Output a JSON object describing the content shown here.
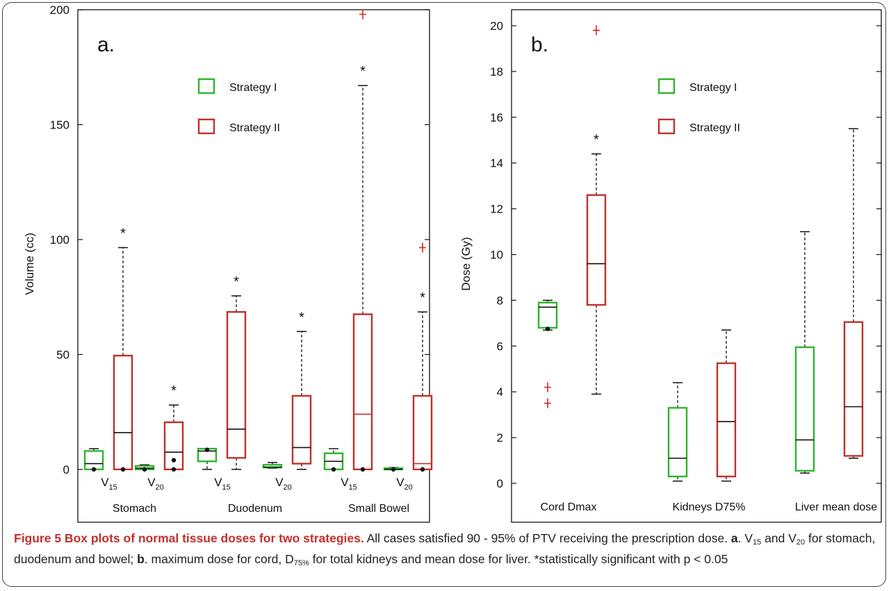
{
  "chart_data": [
    {
      "type": "box",
      "panel_label": "a.",
      "ylabel": "Volume (cc)",
      "ylim": [
        -23,
        200
      ],
      "yticks": [
        0,
        50,
        100,
        150,
        200
      ],
      "legend": [
        {
          "name": "Strategy I",
          "color": "#2bb52b"
        },
        {
          "name": "Strategy II",
          "color": "#c0302a"
        }
      ],
      "groups": [
        {
          "name": "Stomach",
          "subs": [
            {
              "label": "V",
              "sub": "15",
              "boxes": [
                {
                  "series": "Strategy I",
                  "whisker_low": 0,
                  "q1": 0,
                  "median": 2.5,
                  "q3": 8,
                  "whisker_high": 9,
                  "outliers": [
                    0
                  ]
                },
                {
                  "series": "Strategy II",
                  "whisker_low": 0,
                  "q1": 0,
                  "median": 16,
                  "q3": 49.5,
                  "whisker_high": 96.5,
                  "outliers": [
                    0
                  ],
                  "significant": true
                }
              ]
            },
            {
              "label": "V",
              "sub": "20",
              "boxes": [
                {
                  "series": "Strategy I",
                  "whisker_low": 0,
                  "q1": 0,
                  "median": 0.5,
                  "q3": 1.5,
                  "whisker_high": 2,
                  "outliers": [
                    0
                  ]
                },
                {
                  "series": "Strategy II",
                  "whisker_low": 0,
                  "q1": 0,
                  "median": 7.5,
                  "q3": 20.5,
                  "whisker_high": 28,
                  "outliers": [
                    0,
                    4
                  ],
                  "significant": true
                }
              ]
            }
          ]
        },
        {
          "name": "Duodenum",
          "subs": [
            {
              "label": "V",
              "sub": "15",
              "boxes": [
                {
                  "series": "Strategy I",
                  "whisker_low": 0,
                  "q1": 3.5,
                  "median": 8,
                  "q3": 9,
                  "whisker_high": 9,
                  "outliers": [
                    8.5
                  ]
                },
                {
                  "series": "Strategy II",
                  "whisker_low": 0,
                  "q1": 5,
                  "median": 17.5,
                  "q3": 68.5,
                  "whisker_high": 75.5,
                  "outliers": [],
                  "significant": true
                }
              ]
            },
            {
              "label": "V",
              "sub": "20",
              "boxes": [
                {
                  "series": "Strategy I",
                  "whisker_low": 0.5,
                  "q1": 0.8,
                  "median": 1,
                  "q3": 2,
                  "whisker_high": 3,
                  "outliers": []
                },
                {
                  "series": "Strategy II",
                  "whisker_low": 0,
                  "q1": 2.5,
                  "median": 9.5,
                  "q3": 32,
                  "whisker_high": 60,
                  "outliers": [],
                  "significant": true
                }
              ]
            }
          ]
        },
        {
          "name": "Small Bowel",
          "subs": [
            {
              "label": "V",
              "sub": "15",
              "boxes": [
                {
                  "series": "Strategy I",
                  "whisker_low": 0,
                  "q1": 0,
                  "median": 3.5,
                  "q3": 7,
                  "whisker_high": 9,
                  "outliers": [
                    0
                  ]
                },
                {
                  "series": "Strategy II",
                  "whisker_low": 0,
                  "q1": 0,
                  "median": 24,
                  "q3": 67.5,
                  "whisker_high": 167,
                  "outliers": [
                    0,
                    198
                  ],
                  "significant": true
                }
              ]
            },
            {
              "label": "V",
              "sub": "20",
              "boxes": [
                {
                  "series": "Strategy I",
                  "whisker_low": 0,
                  "q1": 0,
                  "median": 0,
                  "q3": 0.5,
                  "whisker_high": 0.8,
                  "outliers": [
                    0
                  ]
                },
                {
                  "series": "Strategy II",
                  "whisker_low": 0,
                  "q1": 0,
                  "median": 2.5,
                  "q3": 32,
                  "whisker_high": 68.5,
                  "outliers": [
                    0,
                    96.5
                  ],
                  "significant": true
                }
              ]
            }
          ]
        }
      ]
    },
    {
      "type": "box",
      "panel_label": "b.",
      "ylabel": "Dose (Gy)",
      "ylim": [
        -1.7,
        20.7
      ],
      "yticks": [
        0,
        2,
        4,
        6,
        8,
        10,
        12,
        14,
        16,
        18,
        20
      ],
      "legend": [
        {
          "name": "Strategy I",
          "color": "#2bb52b"
        },
        {
          "name": "Strategy II",
          "color": "#c0302a"
        }
      ],
      "groups": [
        {
          "name": "Cord Dmax",
          "boxes": [
            {
              "series": "Strategy I",
              "whisker_low": 6.7,
              "q1": 6.8,
              "median": 7.7,
              "q3": 7.9,
              "whisker_high": 8,
              "outliers": [
                6.75,
                4.2,
                3.5
              ]
            },
            {
              "series": "Strategy II",
              "whisker_low": 3.9,
              "q1": 7.8,
              "median": 9.6,
              "q3": 12.6,
              "whisker_high": 14.4,
              "outliers": [
                19.8
              ],
              "significant": true
            }
          ]
        },
        {
          "name": "Kidneys  D75%",
          "boxes": [
            {
              "series": "Strategy I",
              "whisker_low": 0.1,
              "q1": 0.3,
              "median": 1.1,
              "q3": 3.3,
              "whisker_high": 4.4,
              "outliers": []
            },
            {
              "series": "Strategy II",
              "whisker_low": 0.1,
              "q1": 0.3,
              "median": 2.7,
              "q3": 5.25,
              "whisker_high": 6.7,
              "outliers": []
            }
          ]
        },
        {
          "name": "Liver mean dose",
          "boxes": [
            {
              "series": "Strategy I",
              "whisker_low": 0.45,
              "q1": 0.55,
              "median": 1.9,
              "q3": 5.95,
              "whisker_high": 11,
              "outliers": []
            },
            {
              "series": "Strategy II",
              "whisker_low": 1.1,
              "q1": 1.2,
              "median": 3.35,
              "q3": 7.05,
              "whisker_high": 15.5,
              "outliers": []
            }
          ]
        }
      ]
    }
  ],
  "caption": {
    "title": "Figure 5 Box plots of normal tissue doses for two strategies.",
    "part1": " All cases satisfied 90 - 95% of PTV receiving the prescription dose. ",
    "a": "a",
    "part2a": ". V",
    "sub15": "15",
    "part2b": " and V",
    "sub20": "20",
    "part2c": " for stomach, duodenum and bowel; ",
    "b": "b",
    "part3a": ". maximum dose for cord, D",
    "sub75": "75%",
    "part3b": " for total kidneys and mean dose for liver. *statistically significant with p < 0.05"
  }
}
